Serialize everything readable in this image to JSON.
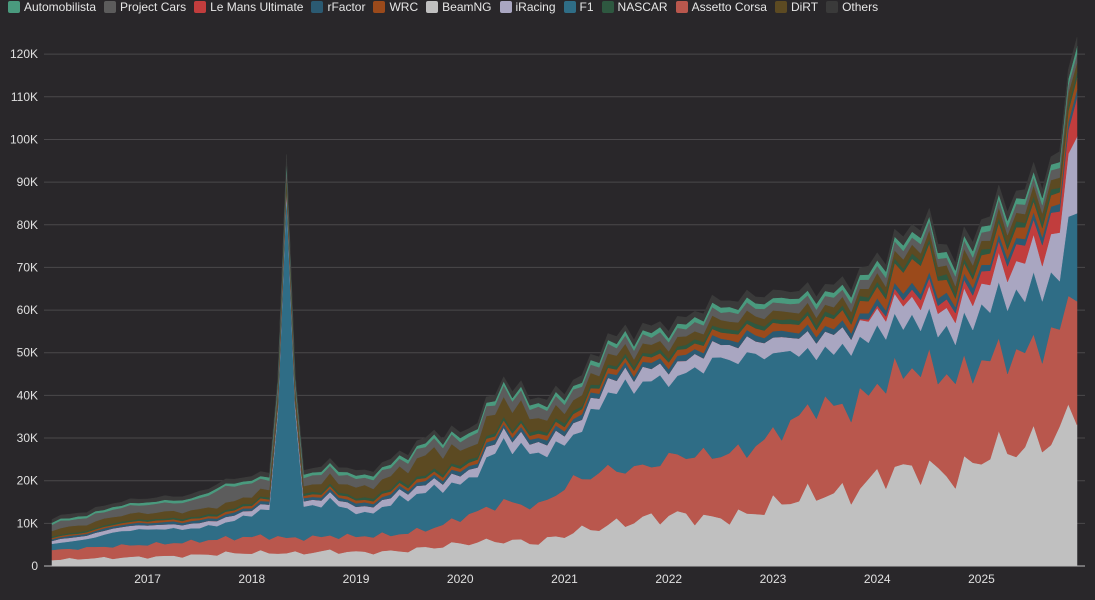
{
  "chart_data": {
    "type": "area",
    "stacked": true,
    "title": "",
    "xlabel": "",
    "ylabel": "",
    "x_start": "2016-02",
    "x_end": "2025-12",
    "grid": true,
    "legend_position": "top-left",
    "ylim": [
      0,
      128000
    ],
    "yticks": [
      0,
      10000,
      20000,
      30000,
      40000,
      50000,
      60000,
      70000,
      80000,
      90000,
      100000,
      110000,
      120000
    ],
    "ytick_labels": [
      "0",
      "10K",
      "20K",
      "30K",
      "40K",
      "50K",
      "60K",
      "70K",
      "80K",
      "90K",
      "100K",
      "110K",
      "120K"
    ],
    "xtick_labels": [
      {
        "label": "2017",
        "date": "2017-01"
      },
      {
        "label": "2018",
        "date": "2018-01"
      },
      {
        "label": "2019",
        "date": "2019-01"
      },
      {
        "label": "2020",
        "date": "2020-01"
      },
      {
        "label": "2021",
        "date": "2021-01"
      },
      {
        "label": "2022",
        "date": "2022-01"
      },
      {
        "label": "2023",
        "date": "2023-01"
      },
      {
        "label": "2024",
        "date": "2024-01"
      },
      {
        "label": "2025",
        "date": "2025-01"
      }
    ],
    "series": [
      {
        "name": "BeamNG",
        "color": "#c0c0c0",
        "points": [
          [
            "2016-02",
            1500
          ],
          [
            "2016-06",
            1800
          ],
          [
            "2016-10",
            2000
          ],
          [
            "2017-02",
            2200
          ],
          [
            "2017-06",
            2500
          ],
          [
            "2017-10",
            3000
          ],
          [
            "2018-02",
            3200
          ],
          [
            "2018-06",
            3000
          ],
          [
            "2018-10",
            3500
          ],
          [
            "2019-02",
            3200
          ],
          [
            "2019-06",
            3500
          ],
          [
            "2019-10",
            4500
          ],
          [
            "2020-02",
            5500
          ],
          [
            "2020-06",
            6000
          ],
          [
            "2020-10",
            5500
          ],
          [
            "2021-02",
            8000
          ],
          [
            "2021-06",
            9500
          ],
          [
            "2021-10",
            11000
          ],
          [
            "2022-02",
            12000
          ],
          [
            "2022-06",
            11000
          ],
          [
            "2022-10",
            12000
          ],
          [
            "2023-02",
            15000
          ],
          [
            "2023-06",
            17000
          ],
          [
            "2023-10",
            17000
          ],
          [
            "2024-02",
            22000
          ],
          [
            "2024-06",
            23000
          ],
          [
            "2024-10",
            21000
          ],
          [
            "2025-02",
            27000
          ],
          [
            "2025-06",
            28000
          ],
          [
            "2025-10",
            31000
          ],
          [
            "2025-12",
            38000
          ]
        ]
      },
      {
        "name": "Assetto Corsa",
        "color": "#b9574d",
        "points": [
          [
            "2016-02",
            2200
          ],
          [
            "2016-06",
            2500
          ],
          [
            "2016-10",
            2800
          ],
          [
            "2017-02",
            3000
          ],
          [
            "2017-06",
            3200
          ],
          [
            "2017-10",
            3500
          ],
          [
            "2018-02",
            3800
          ],
          [
            "2018-06",
            3500
          ],
          [
            "2018-10",
            3500
          ],
          [
            "2019-02",
            3800
          ],
          [
            "2019-06",
            4000
          ],
          [
            "2019-10",
            4500
          ],
          [
            "2020-02",
            6500
          ],
          [
            "2020-06",
            9000
          ],
          [
            "2020-10",
            8500
          ],
          [
            "2021-02",
            12000
          ],
          [
            "2021-06",
            13000
          ],
          [
            "2021-10",
            12000
          ],
          [
            "2022-02",
            14000
          ],
          [
            "2022-06",
            15000
          ],
          [
            "2022-10",
            15000
          ],
          [
            "2023-02",
            17000
          ],
          [
            "2023-06",
            21000
          ],
          [
            "2023-10",
            20000
          ],
          [
            "2024-02",
            22000
          ],
          [
            "2024-06",
            24000
          ],
          [
            "2024-10",
            23000
          ],
          [
            "2025-02",
            22000
          ],
          [
            "2025-06",
            22000
          ],
          [
            "2025-10",
            24000
          ],
          [
            "2025-12",
            30000
          ]
        ]
      },
      {
        "name": "F1",
        "color": "#2f6d86",
        "points": [
          [
            "2016-02",
            1500
          ],
          [
            "2016-06",
            2000
          ],
          [
            "2016-10",
            3500
          ],
          [
            "2017-02",
            3500
          ],
          [
            "2017-06",
            3000
          ],
          [
            "2017-10",
            3500
          ],
          [
            "2018-02",
            6000
          ],
          [
            "2018-06",
            7000
          ],
          [
            "2018-10",
            8000
          ],
          [
            "2019-02",
            5000
          ],
          [
            "2019-06",
            8000
          ],
          [
            "2019-10",
            9000
          ],
          [
            "2020-02",
            8000
          ],
          [
            "2020-06",
            14000
          ],
          [
            "2020-10",
            12000
          ],
          [
            "2021-02",
            10000
          ],
          [
            "2021-06",
            18000
          ],
          [
            "2021-10",
            20000
          ],
          [
            "2022-02",
            18000
          ],
          [
            "2022-06",
            22000
          ],
          [
            "2022-10",
            22000
          ],
          [
            "2023-02",
            18000
          ],
          [
            "2023-06",
            12000
          ],
          [
            "2023-10",
            14000
          ],
          [
            "2024-02",
            12000
          ],
          [
            "2024-06",
            11000
          ],
          [
            "2024-10",
            10000
          ],
          [
            "2025-02",
            13000
          ],
          [
            "2025-06",
            14000
          ],
          [
            "2025-10",
            13000
          ],
          [
            "2025-12",
            20000
          ]
        ]
      },
      {
        "name": "iRacing",
        "color": "#a9a6c1",
        "points": [
          [
            "2016-02",
            800
          ],
          [
            "2016-06",
            900
          ],
          [
            "2016-10",
            1000
          ],
          [
            "2017-02",
            1000
          ],
          [
            "2017-06",
            1100
          ],
          [
            "2017-10",
            1200
          ],
          [
            "2018-02",
            1200
          ],
          [
            "2018-06",
            1300
          ],
          [
            "2018-10",
            1400
          ],
          [
            "2019-02",
            1500
          ],
          [
            "2019-06",
            1600
          ],
          [
            "2019-10",
            1800
          ],
          [
            "2020-02",
            2000
          ],
          [
            "2020-06",
            2500
          ],
          [
            "2020-10",
            2500
          ],
          [
            "2021-02",
            2500
          ],
          [
            "2021-06",
            3000
          ],
          [
            "2021-10",
            3000
          ],
          [
            "2022-02",
            3000
          ],
          [
            "2022-06",
            3500
          ],
          [
            "2022-10",
            3500
          ],
          [
            "2023-02",
            3500
          ],
          [
            "2023-06",
            4000
          ],
          [
            "2023-10",
            4000
          ],
          [
            "2024-02",
            4500
          ],
          [
            "2024-06",
            5000
          ],
          [
            "2024-10",
            5000
          ],
          [
            "2025-02",
            6000
          ],
          [
            "2025-06",
            8000
          ],
          [
            "2025-10",
            10000
          ],
          [
            "2025-12",
            20000
          ]
        ]
      },
      {
        "name": "Le Mans Ultimate",
        "color": "#c13d3d",
        "points": [
          [
            "2016-02",
            0
          ],
          [
            "2023-10",
            0
          ],
          [
            "2024-02",
            1000
          ],
          [
            "2024-06",
            2000
          ],
          [
            "2024-10",
            2000
          ],
          [
            "2025-02",
            3000
          ],
          [
            "2025-06",
            4000
          ],
          [
            "2025-10",
            5000
          ],
          [
            "2025-12",
            8000
          ]
        ]
      },
      {
        "name": "rFactor",
        "color": "#2b5a72",
        "points": [
          [
            "2016-02",
            400
          ],
          [
            "2016-10",
            500
          ],
          [
            "2017-06",
            600
          ],
          [
            "2018-06",
            700
          ],
          [
            "2019-06",
            800
          ],
          [
            "2020-06",
            1000
          ],
          [
            "2021-06",
            1200
          ],
          [
            "2022-06",
            1300
          ],
          [
            "2023-06",
            1400
          ],
          [
            "2024-06",
            1500
          ],
          [
            "2025-06",
            1600
          ],
          [
            "2025-12",
            1800
          ]
        ]
      },
      {
        "name": "WRC",
        "color": "#9b4a1b",
        "points": [
          [
            "2016-02",
            300
          ],
          [
            "2016-10",
            400
          ],
          [
            "2017-06",
            500
          ],
          [
            "2018-06",
            600
          ],
          [
            "2019-06",
            700
          ],
          [
            "2020-06",
            900
          ],
          [
            "2021-06",
            1200
          ],
          [
            "2022-06",
            1500
          ],
          [
            "2023-06",
            2000
          ],
          [
            "2024-02",
            3000
          ],
          [
            "2024-06",
            7000
          ],
          [
            "2024-10",
            2000
          ],
          [
            "2025-02",
            2500
          ],
          [
            "2025-06",
            2500
          ],
          [
            "2025-10",
            2500
          ],
          [
            "2025-12",
            3000
          ]
        ]
      },
      {
        "name": "NASCAR",
        "color": "#2e5840",
        "points": [
          [
            "2016-02",
            300
          ],
          [
            "2017-06",
            400
          ],
          [
            "2018-06",
            500
          ],
          [
            "2019-06",
            600
          ],
          [
            "2020-06",
            700
          ],
          [
            "2021-06",
            800
          ],
          [
            "2022-06",
            900
          ],
          [
            "2023-06",
            1000
          ],
          [
            "2024-06",
            1100
          ],
          [
            "2025-06",
            1200
          ],
          [
            "2025-12",
            1300
          ]
        ]
      },
      {
        "name": "DiRT",
        "color": "#5c4a22",
        "points": [
          [
            "2016-02",
            1500
          ],
          [
            "2016-10",
            1500
          ],
          [
            "2017-06",
            1600
          ],
          [
            "2018-06",
            1700
          ],
          [
            "2019-06",
            3000
          ],
          [
            "2019-10",
            5000
          ],
          [
            "2020-02",
            3000
          ],
          [
            "2020-06",
            5000
          ],
          [
            "2020-10",
            3000
          ],
          [
            "2021-02",
            2500
          ],
          [
            "2021-06",
            2500
          ],
          [
            "2021-10",
            2000
          ],
          [
            "2022-06",
            2000
          ],
          [
            "2023-06",
            1800
          ],
          [
            "2024-06",
            2000
          ],
          [
            "2025-06",
            2200
          ],
          [
            "2025-12",
            2500
          ]
        ]
      },
      {
        "name": "Project Cars",
        "color": "#5c5c5c",
        "points": [
          [
            "2016-02",
            1500
          ],
          [
            "2016-10",
            1800
          ],
          [
            "2017-06",
            2200
          ],
          [
            "2017-10",
            4000
          ],
          [
            "2018-02",
            2500
          ],
          [
            "2018-06",
            2000
          ],
          [
            "2019-06",
            2000
          ],
          [
            "2020-06",
            2500
          ],
          [
            "2021-06",
            2000
          ],
          [
            "2022-06",
            2000
          ],
          [
            "2023-06",
            2000
          ],
          [
            "2024-06",
            2000
          ],
          [
            "2025-06",
            2000
          ],
          [
            "2025-12",
            2200
          ]
        ]
      },
      {
        "name": "Automobilista",
        "color": "#4a9a7e",
        "points": [
          [
            "2016-02",
            500
          ],
          [
            "2017-06",
            600
          ],
          [
            "2018-06",
            700
          ],
          [
            "2019-06",
            800
          ],
          [
            "2020-06",
            900
          ],
          [
            "2021-06",
            1000
          ],
          [
            "2022-06",
            1100
          ],
          [
            "2023-06",
            1200
          ],
          [
            "2024-06",
            1300
          ],
          [
            "2025-06",
            1400
          ],
          [
            "2025-12",
            1500
          ]
        ]
      },
      {
        "name": "Others",
        "color": "#3a3a3a",
        "points": [
          [
            "2016-02",
            800
          ],
          [
            "2017-06",
            900
          ],
          [
            "2018-06",
            1000
          ],
          [
            "2019-06",
            1100
          ],
          [
            "2020-06",
            1300
          ],
          [
            "2021-06",
            1500
          ],
          [
            "2022-06",
            1600
          ],
          [
            "2023-06",
            1700
          ],
          [
            "2024-06",
            1800
          ],
          [
            "2025-06",
            2000
          ],
          [
            "2025-12",
            2200
          ]
        ]
      }
    ],
    "spikes": [
      {
        "series": "F1",
        "date": "2018-05",
        "value": 75000
      }
    ]
  },
  "legend": [
    {
      "label": "Automobilista",
      "color": "#4a9a7e"
    },
    {
      "label": "Project Cars",
      "color": "#5c5c5c"
    },
    {
      "label": "Le Mans Ultimate",
      "color": "#c13d3d"
    },
    {
      "label": "rFactor",
      "color": "#2b5a72"
    },
    {
      "label": "WRC",
      "color": "#9b4a1b"
    },
    {
      "label": "BeamNG",
      "color": "#c0c0c0"
    },
    {
      "label": "iRacing",
      "color": "#a9a6c1"
    },
    {
      "label": "F1",
      "color": "#2f6d86"
    },
    {
      "label": "NASCAR",
      "color": "#2e5840"
    },
    {
      "label": "Assetto Corsa",
      "color": "#b9574d"
    },
    {
      "label": "DiRT",
      "color": "#5c4a22"
    },
    {
      "label": "Others",
      "color": "#3a3a3a"
    }
  ]
}
